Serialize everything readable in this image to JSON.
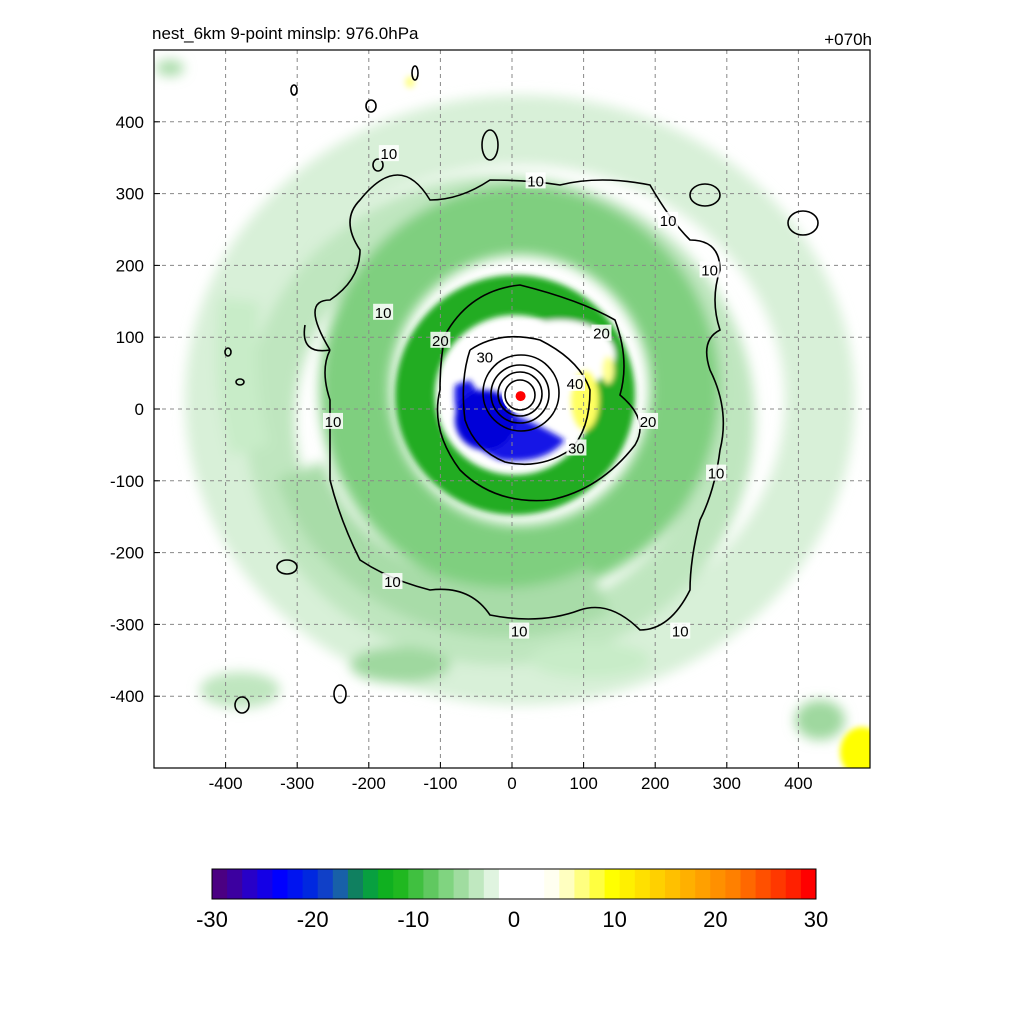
{
  "chart_data": {
    "type": "heatmap",
    "title_left": "nest_6km  9-point minslp: 976.0hPa",
    "title_right": "+070h",
    "xlabel": "",
    "ylabel": "",
    "xlim": [
      -500,
      500
    ],
    "ylim": [
      -500,
      500
    ],
    "x_ticks": [
      -400,
      -300,
      -200,
      -100,
      0,
      100,
      200,
      300,
      400
    ],
    "y_ticks": [
      400,
      300,
      200,
      100,
      0,
      -100,
      -200,
      -300,
      -400
    ],
    "grid": true,
    "storm_center": {
      "x": 12,
      "y": 18,
      "color": "#ff0000"
    },
    "contour_labels": [
      {
        "text": "10",
        "x": 33,
        "y": 317
      },
      {
        "text": "10",
        "x": -172,
        "y": 355
      },
      {
        "text": "10",
        "x": 218,
        "y": 262
      },
      {
        "text": "10",
        "x": 276,
        "y": 193
      },
      {
        "text": "10",
        "x": -180,
        "y": 134
      },
      {
        "text": "10",
        "x": -250,
        "y": -18
      },
      {
        "text": "10",
        "x": 285,
        "y": -90
      },
      {
        "text": "10",
        "x": -167,
        "y": -241
      },
      {
        "text": "10",
        "x": 10,
        "y": -310
      },
      {
        "text": "10",
        "x": 235,
        "y": -310
      },
      {
        "text": "20",
        "x": -100,
        "y": 95
      },
      {
        "text": "20",
        "x": 125,
        "y": 105
      },
      {
        "text": "20",
        "x": 190,
        "y": -18
      },
      {
        "text": "30",
        "x": -38,
        "y": 72
      },
      {
        "text": "30",
        "x": 90,
        "y": -55
      },
      {
        "text": "40",
        "x": 88,
        "y": 35
      }
    ],
    "colorbar": {
      "ticks": [
        "-30",
        "-20",
        "-10",
        "0",
        "10",
        "20",
        "30"
      ],
      "range": [
        -30,
        30
      ],
      "colors": [
        "#4b0082",
        "#3c00a0",
        "#2800c8",
        "#1400e6",
        "#0000ff",
        "#0014f0",
        "#0028e0",
        "#1040c8",
        "#1860a8",
        "#108060",
        "#08a040",
        "#10b020",
        "#20b820",
        "#40c040",
        "#60c860",
        "#80d480",
        "#a0dca0",
        "#c0e8c0",
        "#e0f4e0",
        "#ffffff",
        "#ffffff",
        "#ffffff",
        "#fffff0",
        "#ffffc0",
        "#ffff80",
        "#ffff40",
        "#ffff00",
        "#fff000",
        "#ffe000",
        "#ffd000",
        "#ffc000",
        "#ffb000",
        "#ffa000",
        "#ff9000",
        "#ff8000",
        "#ff6800",
        "#ff5000",
        "#ff3800",
        "#ff2000",
        "#ff0000"
      ]
    },
    "colors": {
      "light_green": "#d8f0d8",
      "mid_green": "#98d898",
      "dark_green": "#30b030",
      "blue": "#1414e6",
      "yellow": "#ffff60"
    }
  }
}
